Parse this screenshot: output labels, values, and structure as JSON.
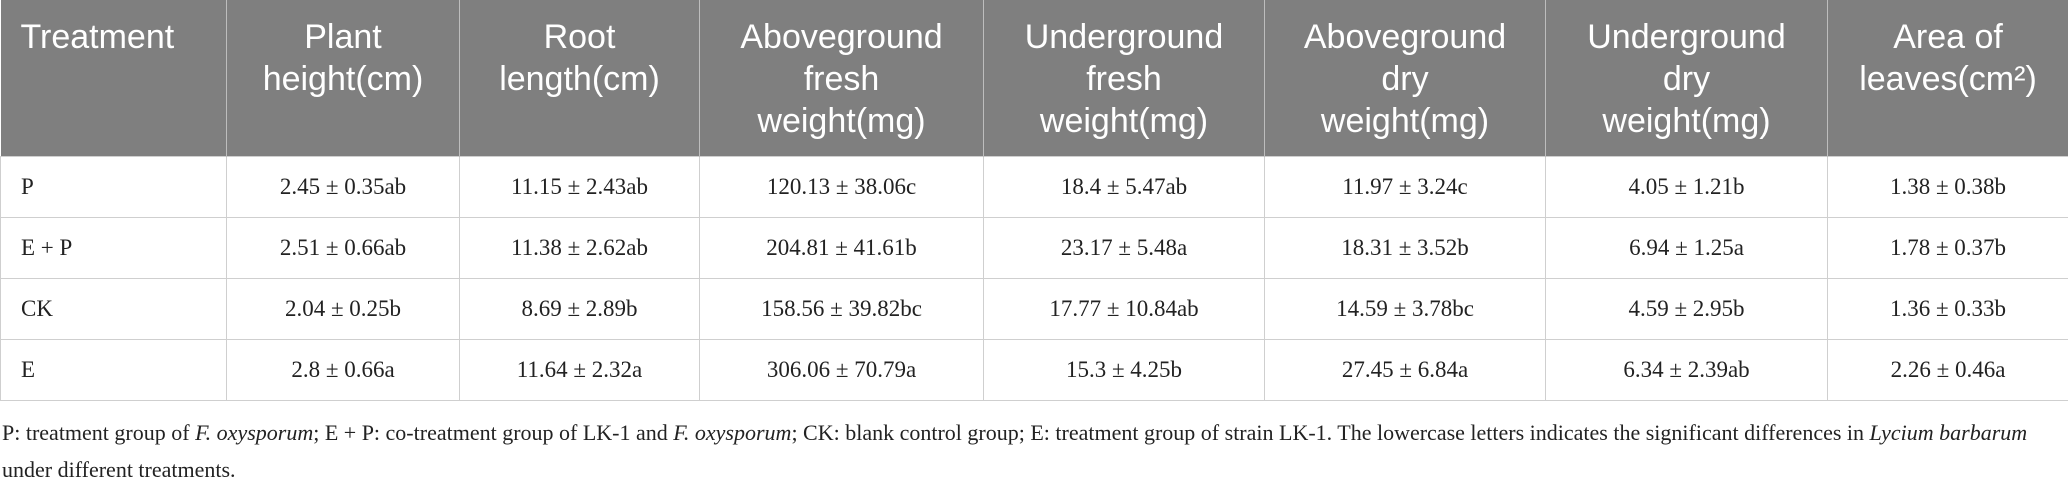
{
  "table": {
    "header": [
      [
        "Treatment"
      ],
      [
        "Plant",
        "height(cm)"
      ],
      [
        "Root",
        "length(cm)"
      ],
      [
        "Aboveground",
        "fresh",
        "weight(mg)"
      ],
      [
        "Underground",
        "fresh",
        "weight(mg)"
      ],
      [
        "Aboveground",
        "dry",
        "weight(mg)"
      ],
      [
        "Underground",
        "dry",
        "weight(mg)"
      ],
      [
        "Area of",
        "leaves(cm²)"
      ]
    ],
    "rows": [
      [
        "P",
        "2.45 ± 0.35ab",
        "11.15 ± 2.43ab",
        "120.13 ± 38.06c",
        "18.4 ± 5.47ab",
        "11.97 ± 3.24c",
        "4.05 ± 1.21b",
        "1.38 ± 0.38b"
      ],
      [
        "E + P",
        "2.51 ± 0.66ab",
        "11.38 ± 2.62ab",
        "204.81 ± 41.61b",
        "23.17 ± 5.48a",
        "18.31 ± 3.52b",
        "6.94 ± 1.25a",
        "1.78 ± 0.37b"
      ],
      [
        "CK",
        "2.04 ± 0.25b",
        "8.69 ± 2.89b",
        "158.56 ± 39.82bc",
        "17.77 ± 10.84ab",
        "14.59 ± 3.78bc",
        "4.59 ± 2.95b",
        "1.36 ± 0.33b"
      ],
      [
        "E",
        "2.8 ± 0.66a",
        "11.64 ± 2.32a",
        "306.06 ± 70.79a",
        "15.3 ± 4.25b",
        "27.45 ± 6.84a",
        "6.34 ± 2.39ab",
        "2.26 ± 0.46a"
      ]
    ]
  },
  "footnote": [
    "P: treatment group of ",
    "F. oxysporum",
    "; E + P: co-treatment group of LK-1 and ",
    "F. oxysporum",
    "; CK: blank control group; E: treatment group of strain LK-1. The lowercase letters indicates the significant differences in ",
    "Lycium barbarum",
    " under different treatments."
  ]
}
